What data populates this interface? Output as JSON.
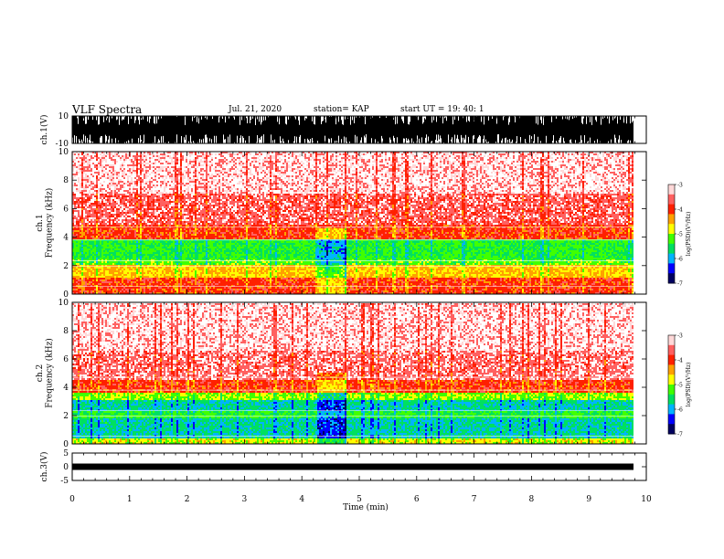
{
  "header": {
    "title": "VLF Spectra",
    "date": "Jul. 21, 2020",
    "station": "station= KAP",
    "start": "start UT = 19: 40: 1"
  },
  "colors": {
    "colorbar": [
      "#000060",
      "#0000ff",
      "#00b4ff",
      "#00e060",
      "#40ff00",
      "#ffff00",
      "#ffa000",
      "#ff2000",
      "#ff6060",
      "#ffd8d8"
    ]
  },
  "chart_data": [
    {
      "type": "line",
      "name": "ch1-waveform",
      "ylabel": "ch.1(V)",
      "ylim": [
        -10,
        10
      ],
      "yticks": [
        "10",
        "-10"
      ],
      "xlim": [
        0,
        10
      ]
    },
    {
      "type": "heatmap",
      "name": "ch1-spectrogram",
      "ylabel": "ch.1 Frequency (kHz)",
      "ylim": [
        0,
        10
      ],
      "yticks": [
        "0",
        "2",
        "4",
        "6",
        "8",
        "10"
      ],
      "xlim": [
        0,
        10
      ],
      "colorbar": {
        "label": "log(PSD)(V²/Hz)",
        "range": [
          -7,
          -3
        ],
        "ticks": [
          "-3",
          "-4",
          "-5",
          "-6",
          "-7"
        ]
      },
      "bands": [
        {
          "from": 0.0,
          "to": 1.1,
          "level": 0.78
        },
        {
          "from": 1.1,
          "to": 2.0,
          "level": 0.62
        },
        {
          "from": 2.0,
          "to": 2.4,
          "level": 0.45
        },
        {
          "from": 2.4,
          "to": 3.8,
          "level": 0.4
        },
        {
          "from": 3.8,
          "to": 4.8,
          "level": 0.78
        },
        {
          "from": 4.8,
          "to": 7.0,
          "level": 0.88
        },
        {
          "from": 7.0,
          "to": 10.0,
          "level": 0.96
        }
      ],
      "burst": {
        "time": 4.5,
        "width": 0.25,
        "fmax": 4.5
      }
    },
    {
      "type": "heatmap",
      "name": "ch2-spectrogram",
      "ylabel": "ch.2 Frequency (kHz)",
      "ylim": [
        0,
        10
      ],
      "yticks": [
        "0",
        "2",
        "4",
        "6",
        "8",
        "10"
      ],
      "xlim": [
        0,
        10
      ],
      "colorbar": {
        "label": "log(PSD)(V²/Hz)",
        "range": [
          -7,
          -3
        ],
        "ticks": [
          "-3",
          "-4",
          "-5",
          "-6",
          "-7"
        ]
      },
      "bands": [
        {
          "from": 0.0,
          "to": 0.3,
          "level": 0.55
        },
        {
          "from": 0.3,
          "to": 1.7,
          "level": 0.3
        },
        {
          "from": 1.7,
          "to": 2.2,
          "level": 0.4
        },
        {
          "from": 2.2,
          "to": 3.0,
          "level": 0.3
        },
        {
          "from": 3.0,
          "to": 3.6,
          "level": 0.5
        },
        {
          "from": 3.6,
          "to": 4.4,
          "level": 0.78
        },
        {
          "from": 4.4,
          "to": 6.5,
          "level": 0.9
        },
        {
          "from": 6.5,
          "to": 10.0,
          "level": 0.96
        }
      ],
      "burst": {
        "time": 4.5,
        "width": 0.25,
        "fmax": 5.0
      }
    },
    {
      "type": "line",
      "name": "ch3-waveform",
      "ylabel": "ch.3(V)",
      "ylim": [
        -5,
        5
      ],
      "yticks": [
        "5",
        "0",
        "-5"
      ],
      "xlim": [
        0,
        10
      ],
      "xlabel": "Time (min)",
      "xticks": [
        "0",
        "1",
        "2",
        "3",
        "4",
        "5",
        "6",
        "7",
        "8",
        "9",
        "10"
      ]
    }
  ]
}
